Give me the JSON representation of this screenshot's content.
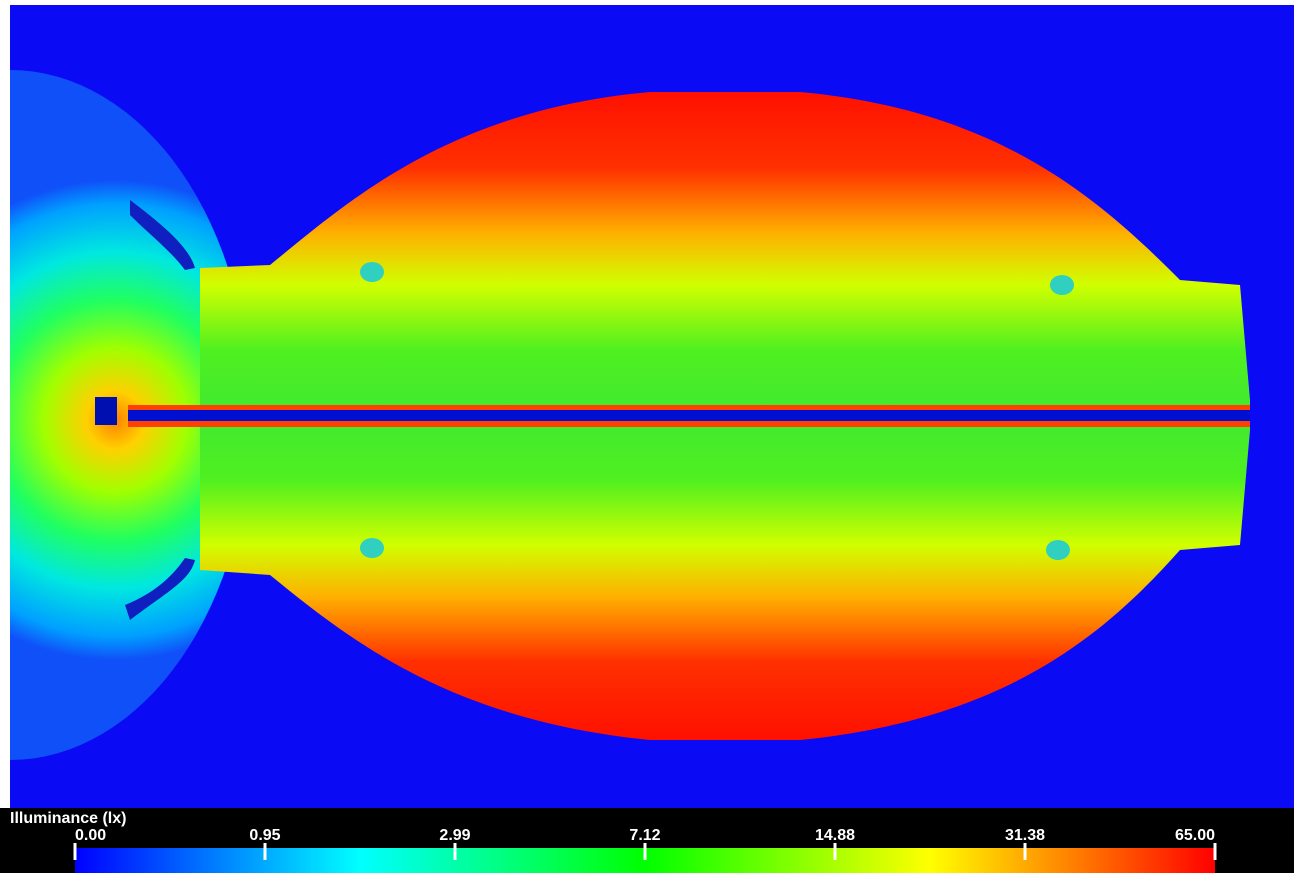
{
  "legend": {
    "title": "Illuminance (lx)",
    "ticks": [
      {
        "value": 0,
        "label": "0.00"
      },
      {
        "value": 0.95,
        "label": "0.95"
      },
      {
        "value": 2.99,
        "label": "2.99"
      },
      {
        "value": 7.12,
        "label": "7.12"
      },
      {
        "value": 14.88,
        "label": "14.88"
      },
      {
        "value": 31.38,
        "label": "31.38"
      },
      {
        "value": 65,
        "label": "65.00"
      }
    ],
    "colors": [
      "#0000ff",
      "#00ffff",
      "#00ff00",
      "#ffff00",
      "#ff0000"
    ]
  }
}
